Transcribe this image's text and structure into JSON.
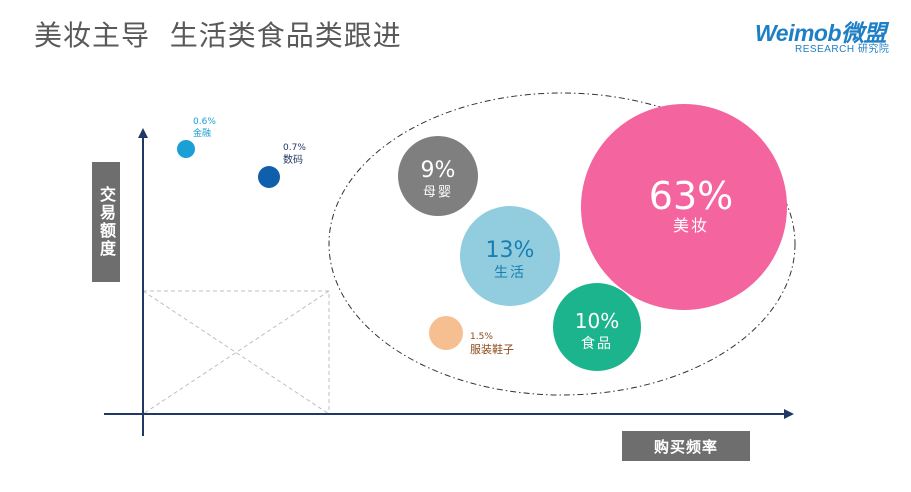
{
  "header": {
    "title": "美妆主导  生活类食品类跟进",
    "logo_main": "Weimob微盟",
    "logo_sub": "RESEARCH 研究院"
  },
  "colors": {
    "brand": "#1f7fc4",
    "axis": "#1f3864",
    "label_box": "#6e6e6e"
  },
  "chart_data": {
    "type": "scatter",
    "xlabel": "购买频率",
    "ylabel": "交易额度",
    "points": [
      {
        "value": "0.6%",
        "name": "金融",
        "share": 0.6,
        "color": "#1aa0d4",
        "label_color": "#1aa0d4",
        "label_position": "outside"
      },
      {
        "value": "0.7%",
        "name": "数码",
        "share": 0.7,
        "color": "#0f5fad",
        "label_color": "#1f3864",
        "label_position": "outside"
      },
      {
        "value": "9%",
        "name": "母婴",
        "share": 9,
        "color": "#7f7f7f",
        "label_color": "#ffffff",
        "label_position": "inside"
      },
      {
        "value": "13%",
        "name": "生活",
        "share": 13,
        "color": "#92cddf",
        "label_color": "#1a7fb0",
        "label_position": "inside"
      },
      {
        "value": "63%",
        "name": "美妆",
        "share": 63,
        "color": "#f4649e",
        "label_color": "#ffffff",
        "label_position": "inside"
      },
      {
        "value": "1.5%",
        "name": "服装鞋子",
        "share": 1.5,
        "color": "#f6bf91",
        "label_color": "#8a4a1a",
        "label_position": "outside"
      },
      {
        "value": "10%",
        "name": "食品",
        "share": 10,
        "color": "#1cb48c",
        "label_color": "#ffffff",
        "label_position": "inside"
      }
    ]
  }
}
